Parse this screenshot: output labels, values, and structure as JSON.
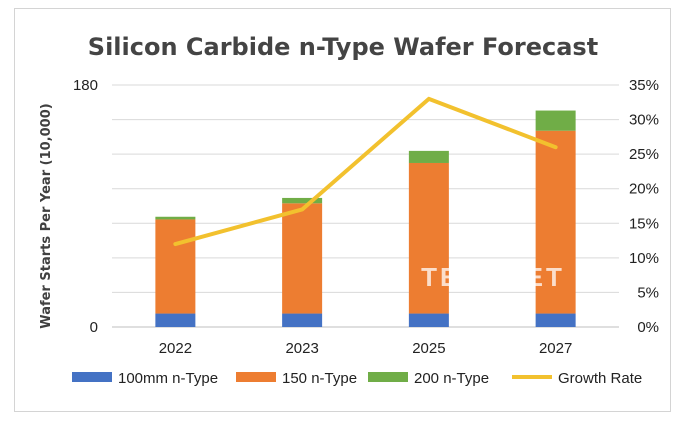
{
  "chart_data": {
    "type": "bar",
    "stacked": true,
    "title": "Silicon Carbide n-Type Wafer Forecast",
    "ylabel": "Wafer Starts Per Year (10,000)",
    "ylim": [
      0,
      180
    ],
    "y_ticks": [
      "0",
      "180"
    ],
    "y2lim": [
      0,
      35
    ],
    "y2_ticks": [
      "0%",
      "5%",
      "10%",
      "15%",
      "20%",
      "25%",
      "30%",
      "35%"
    ],
    "categories": [
      "2022",
      "2023",
      "2025",
      "2027"
    ],
    "series": [
      {
        "name": "100mm n-Type",
        "values": [
          10,
          10,
          10,
          10
        ],
        "color": "#4472C4"
      },
      {
        "name": "150 n-Type",
        "values": [
          70,
          82,
          112,
          136
        ],
        "color": "#ED7D31"
      },
      {
        "name": "200 n-Type",
        "values": [
          2,
          4,
          9,
          15
        ],
        "color": "#70AD47"
      }
    ],
    "line_series": {
      "name": "Growth Rate",
      "axis": "secondary",
      "values": [
        12,
        17,
        33,
        26
      ],
      "color": "#F2C12E"
    },
    "grid": true,
    "legend_position": "bottom",
    "watermark": "TECHCET"
  }
}
